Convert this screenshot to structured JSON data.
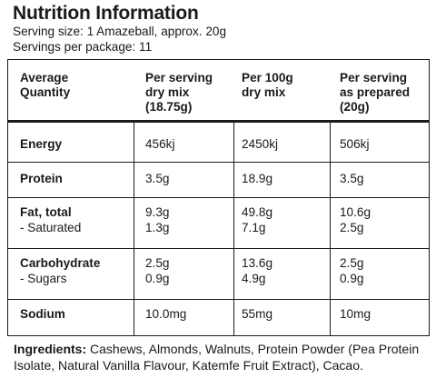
{
  "title": "Nutrition Information",
  "serving_size": "Serving size: 1 Amazeball, approx. 20g",
  "servings_per_package": "Servings per package: 11",
  "table": {
    "headers": [
      "Average\nQuantity",
      "Per serving\ndry mix\n(18.75g)",
      "Per 100g\ndry mix",
      "Per serving\nas prepared\n(20g)"
    ],
    "rows": [
      {
        "label": "Energy",
        "sub_label": "",
        "values": [
          "456kj",
          "2450kj",
          "506kj"
        ],
        "sub_values": [
          "",
          "",
          ""
        ]
      },
      {
        "label": "Protein",
        "sub_label": "",
        "values": [
          "3.5g",
          "18.9g",
          "3.5g"
        ],
        "sub_values": [
          "",
          "",
          ""
        ]
      },
      {
        "label": "Fat, total",
        "sub_label": "- Saturated",
        "values": [
          "9.3g",
          "49.8g",
          "10.6g"
        ],
        "sub_values": [
          "1.3g",
          "7.1g",
          "2.5g"
        ]
      },
      {
        "label": "Carbohydrate",
        "sub_label": "- Sugars",
        "values": [
          "2.5g",
          "13.6g",
          "2.5g"
        ],
        "sub_values": [
          "0.9g",
          "4.9g",
          "0.9g"
        ]
      },
      {
        "label": "Sodium",
        "sub_label": "",
        "values": [
          "10.0mg",
          "55mg",
          "10mg"
        ],
        "sub_values": [
          "",
          "",
          ""
        ]
      }
    ]
  },
  "ingredients": {
    "label": "Ingredients:",
    "text": " Cashews, Almonds, Walnuts, Protein Powder (Pea Protein Isolate, Natural Vanilla Flavour, Katemfe Fruit Extract), Cacao."
  }
}
